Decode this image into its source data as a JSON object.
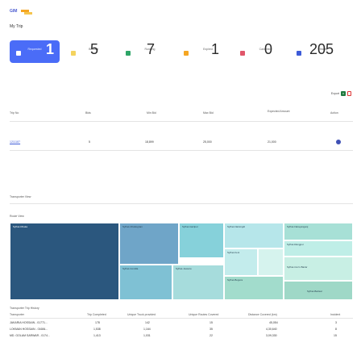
{
  "app": {
    "logo_text": "GIM",
    "page_title": "My Trip",
    "brand_color": "#4a6cf7"
  },
  "cards": [
    {
      "label": "Requested",
      "value": "1",
      "color": "#4a6cf7",
      "active": true
    },
    {
      "label": "Booked",
      "value": "5",
      "color": "#f4d35e"
    },
    {
      "label": "Running",
      "value": "7",
      "color": "#2ea567"
    },
    {
      "label": "Expired",
      "value": "1",
      "color": "#f5a623"
    },
    {
      "label": "Canceled",
      "value": "0",
      "color": "#e0566a"
    },
    {
      "label": "History",
      "value": "205",
      "color": "#3d5bd8"
    }
  ],
  "export": {
    "label": "Export",
    "xls_icon": "excel-icon",
    "pdf_icon": "pdf-icon"
  },
  "trip_table": {
    "headers": [
      "Trip No",
      "Bids",
      "Min Bid",
      "Max Bid",
      "Expected Amount",
      "Action"
    ],
    "row": {
      "trip_no": "1211187",
      "bids": "5",
      "min_bid": "18,899",
      "max_bid": "25,000",
      "expected": "21,000",
      "action_icon": "dot-icon"
    }
  },
  "transporter_view": {
    "label": "Transporter View"
  },
  "route_view": {
    "label": "Route View",
    "tiles": [
      {
        "name": "Sylhet-Dhaka",
        "color": "#2b577e",
        "dark": true
      },
      {
        "name": "Sylhet-Chattogram",
        "color": "#6fa5c8"
      },
      {
        "name": "Sylhet-Comilla",
        "color": "#7fc1d4"
      },
      {
        "name": "Sylhet-Gazipur",
        "color": "#86d1da"
      },
      {
        "name": "Sylhet-Narsingdi",
        "color": "#b6e6ea"
      },
      {
        "name": "Sylhet-Jessore",
        "color": "#a6dcdc"
      },
      {
        "name": "Sylhet-Feni",
        "color": "#c3ecec"
      },
      {
        "name": "Sylhet-Narayanganj",
        "color": "#a7e0d6"
      },
      {
        "name": "Sylhet-Rangpur",
        "color": "#bfeee7"
      },
      {
        "name": "Sylhet-Bogura",
        "color": "#a2dccc"
      },
      {
        "name": "Sylhet-Cox's Bazar",
        "color": "#c8efe4"
      },
      {
        "name": "Sylhet-Barisal",
        "color": "#9fd8c7"
      }
    ]
  },
  "trip_history": {
    "title": "Transporter Trip History",
    "headers": [
      "Transporter",
      "Trip Completed",
      "Unique Truck provided",
      "Unique Routes Covered",
      "Distance Covered (km)",
      "Incident"
    ],
    "rows": [
      [
        "JAKARIA HOSSAIN - 01771...",
        "178",
        "142",
        "15",
        "45,054",
        "3"
      ],
      [
        "LOKMAN HOSSAIN - 01684...",
        "1,538",
        "1,164",
        "35",
        "4,30,640",
        "8"
      ],
      [
        "MD. GOLAM SARWAR - 0174...",
        "1,413",
        "1,031",
        "22",
        "3,09,330",
        "15"
      ]
    ]
  }
}
